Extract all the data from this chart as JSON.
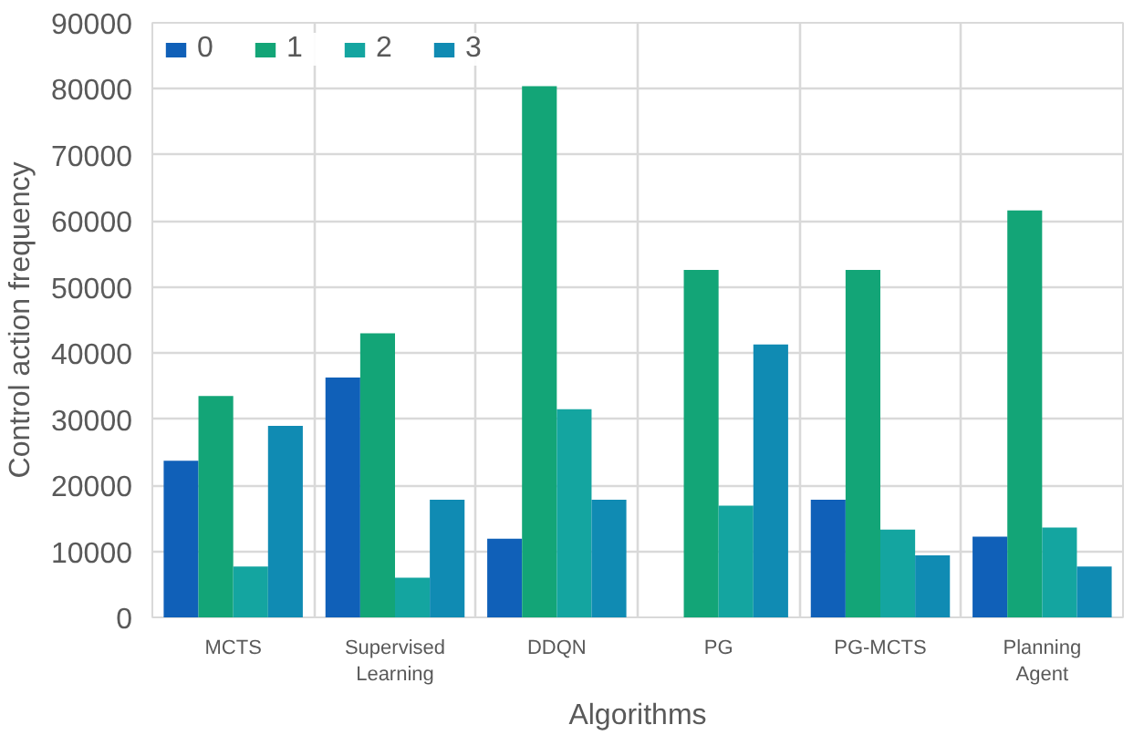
{
  "chart_data": {
    "type": "bar",
    "xlabel": "Algorithms",
    "ylabel": "Control action frequency",
    "categories": [
      "MCTS",
      "Supervised Learning",
      "DDQN",
      "PG",
      "PG-MCTS",
      "Planning Agent"
    ],
    "series": [
      {
        "name": "0",
        "color": "#1060b8",
        "values": [
          23700,
          36300,
          11900,
          0,
          17800,
          12200
        ]
      },
      {
        "name": "1",
        "color": "#13a577",
        "values": [
          33500,
          43000,
          80400,
          52600,
          52600,
          61600
        ]
      },
      {
        "name": "2",
        "color": "#14a5a0",
        "values": [
          7700,
          6000,
          31500,
          16900,
          13300,
          13600
        ]
      },
      {
        "name": "3",
        "color": "#108bb3",
        "values": [
          29000,
          17800,
          17800,
          41300,
          9400,
          7700
        ]
      }
    ],
    "ylim": [
      0,
      90000
    ],
    "yticks": [
      0,
      10000,
      20000,
      30000,
      40000,
      50000,
      60000,
      70000,
      80000,
      90000
    ],
    "grid": true,
    "legend": "top left"
  }
}
